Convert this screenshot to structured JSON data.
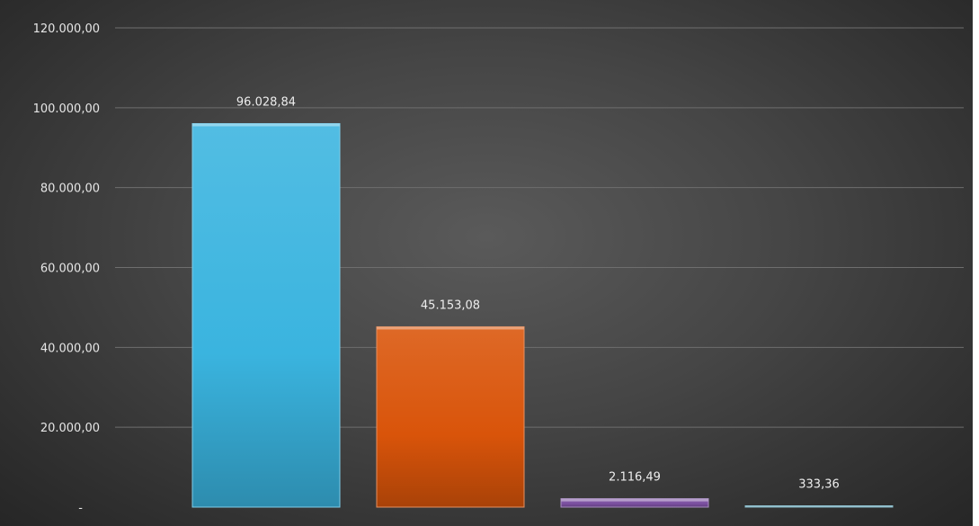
{
  "chart_data": {
    "type": "bar",
    "categories": [
      "",
      "",
      "",
      ""
    ],
    "values": [
      96028.84,
      45153.08,
      2116.49,
      333.36
    ],
    "data_labels": [
      "96.028,84",
      "45.153,08",
      "2.116,49",
      "333,36"
    ],
    "y_ticks": [
      0,
      20000,
      40000,
      60000,
      80000,
      100000,
      120000
    ],
    "y_tick_labels": [
      "-",
      "20.000,00",
      "40.000,00",
      "60.000,00",
      "80.000,00",
      "100.000,00",
      "120.000,00"
    ],
    "ylim": [
      0,
      120000
    ],
    "title": "",
    "xlabel": "",
    "ylabel": "",
    "grid": true,
    "legend": "none",
    "colors": [
      "#3ab4df",
      "#d9540a",
      "#7b4fa0",
      "#3f8fa6"
    ],
    "background": "#4a4a4a"
  }
}
